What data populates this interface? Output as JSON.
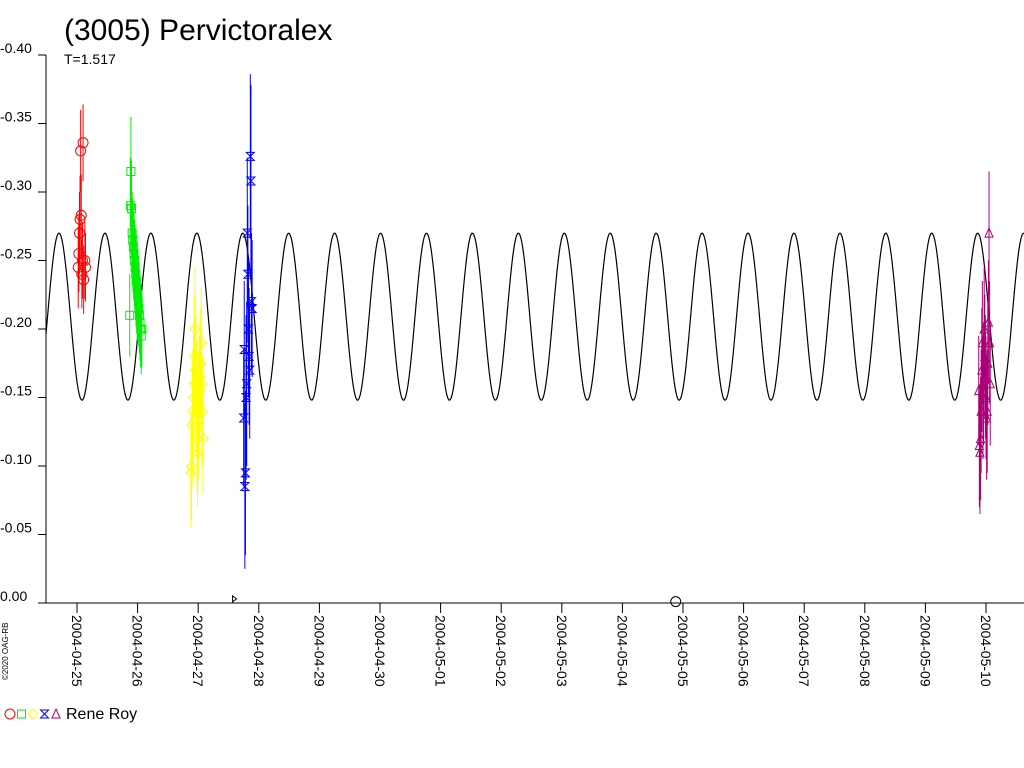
{
  "chart_data": {
    "type": "scatter",
    "title": "(3005) Pervictoralex",
    "subtitle": "T=1.517",
    "copyright": "©2020 OAG-RB",
    "observer": "Rene Roy",
    "y_axis": {
      "inverted": true,
      "ylim": [
        0.0,
        -0.4
      ],
      "ticks": [
        "-0.40",
        "-0.35",
        "-0.30",
        "-0.25",
        "-0.20",
        "-0.15",
        "-0.10",
        "-0.05",
        "0.00"
      ],
      "tick_values": [
        -0.4,
        -0.35,
        -0.3,
        -0.25,
        -0.2,
        -0.15,
        -0.1,
        -0.05,
        0.0
      ]
    },
    "x_axis": {
      "ticks": [
        "2004-04-25",
        "2004-04-26",
        "2004-04-27",
        "2004-04-28",
        "2004-04-29",
        "2004-04-30",
        "2004-05-01",
        "2004-05-02",
        "2004-05-03",
        "2004-05-04",
        "2004-05-05",
        "2004-05-06",
        "2004-05-07",
        "2004-05-08",
        "2004-05-09",
        "2004-05-10"
      ],
      "range_days": [
        -0.47,
        15.6
      ]
    },
    "fit_curve": {
      "period_days": 0.758,
      "mean": -0.209,
      "amplitude": 0.061,
      "phase_days": 0.84,
      "color": "#000000"
    },
    "series": [
      {
        "color": "#ff0000",
        "marker": "circle",
        "x_days": [
          0.02,
          0.03,
          0.04,
          0.05,
          0.06,
          0.07,
          0.08,
          0.09,
          0.1,
          0.11,
          0.13,
          0.14
        ],
        "y": [
          -0.245,
          -0.255,
          -0.27,
          -0.28,
          -0.33,
          -0.283,
          -0.24,
          -0.25,
          -0.336,
          -0.236,
          -0.25,
          -0.245
        ],
        "err": [
          0.03,
          0.028,
          0.03,
          0.032,
          0.03,
          0.03,
          0.025,
          0.028,
          0.028,
          0.025,
          0.028,
          0.025
        ]
      },
      {
        "color": "#00ee00",
        "marker": "square",
        "x_days": [
          0.87,
          0.88,
          0.89,
          0.9,
          0.91,
          0.92,
          0.93,
          0.94,
          0.95,
          0.96,
          0.97,
          0.98,
          0.99,
          1.0,
          1.01,
          1.02,
          1.03,
          1.04,
          1.05,
          1.06,
          1.07
        ],
        "y": [
          -0.21,
          -0.29,
          -0.315,
          -0.288,
          -0.27,
          -0.265,
          -0.26,
          -0.255,
          -0.25,
          -0.245,
          -0.24,
          -0.235,
          -0.23,
          -0.225,
          -0.22,
          -0.215,
          -0.21,
          -0.205,
          -0.2,
          -0.195,
          -0.2
        ],
        "err": [
          0.03,
          0.035,
          0.04,
          0.035,
          0.03,
          0.03,
          0.03,
          0.03,
          0.03,
          0.03,
          0.028,
          0.028,
          0.028,
          0.028,
          0.028,
          0.028,
          0.028,
          0.028,
          0.028,
          0.028,
          0.028
        ]
      },
      {
        "color": "#ffff00",
        "marker": "diamond",
        "x_days": [
          1.88,
          1.89,
          1.9,
          1.91,
          1.92,
          1.93,
          1.94,
          1.95,
          1.96,
          1.97,
          1.98,
          1.99,
          2.0,
          2.01,
          2.02,
          2.03,
          2.04,
          2.05,
          2.06,
          2.07,
          2.08
        ],
        "y": [
          -0.095,
          -0.1,
          -0.13,
          -0.14,
          -0.15,
          -0.16,
          -0.18,
          -0.2,
          -0.17,
          -0.15,
          -0.12,
          -0.11,
          -0.13,
          -0.145,
          -0.155,
          -0.165,
          -0.175,
          -0.19,
          -0.16,
          -0.14,
          -0.12
        ],
        "err": [
          0.04,
          0.04,
          0.045,
          0.045,
          0.045,
          0.045,
          0.045,
          0.045,
          0.04,
          0.04,
          0.04,
          0.04,
          0.04,
          0.04,
          0.04,
          0.04,
          0.04,
          0.04,
          0.04,
          0.04,
          0.04
        ]
      },
      {
        "color": "#0000ff",
        "marker": "hourglass",
        "x_days": [
          2.75,
          2.76,
          2.77,
          2.78,
          2.79,
          2.8,
          2.81,
          2.82,
          2.83,
          2.84,
          2.85,
          2.86,
          2.87,
          2.88,
          2.89
        ],
        "y": [
          -0.135,
          -0.185,
          -0.085,
          -0.095,
          -0.15,
          -0.16,
          -0.27,
          -0.24,
          -0.2,
          -0.18,
          -0.17,
          -0.326,
          -0.308,
          -0.22,
          -0.215
        ],
        "err": [
          0.05,
          0.05,
          0.06,
          0.06,
          0.06,
          0.06,
          0.055,
          0.05,
          0.05,
          0.05,
          0.05,
          0.06,
          0.07,
          0.05,
          0.05
        ]
      },
      {
        "color": "#aa0077",
        "marker": "triangle",
        "x_days": [
          14.88,
          14.89,
          14.9,
          14.91,
          14.92,
          14.93,
          14.94,
          14.95,
          14.96,
          14.97,
          14.98,
          14.99,
          15.0,
          15.01,
          15.02,
          15.03,
          15.04,
          15.05,
          15.06,
          15.07
        ],
        "y": [
          -0.155,
          -0.115,
          -0.11,
          -0.12,
          -0.14,
          -0.17,
          -0.19,
          -0.15,
          -0.16,
          -0.2,
          -0.18,
          -0.165,
          -0.15,
          -0.135,
          -0.14,
          -0.175,
          -0.205,
          -0.27,
          -0.19,
          -0.16
        ],
        "err": [
          0.04,
          0.045,
          0.045,
          0.045,
          0.045,
          0.045,
          0.045,
          0.045,
          0.045,
          0.045,
          0.045,
          0.045,
          0.045,
          0.045,
          0.045,
          0.045,
          0.045,
          0.045,
          0.045,
          0.045
        ]
      }
    ],
    "stray_marks": [
      {
        "marker": "triangle-right",
        "x_days": 2.6,
        "y": -0.003
      },
      {
        "marker": "circle",
        "x_days": 9.88,
        "y": -0.001
      }
    ],
    "grid": false,
    "legend": "bottom-left"
  }
}
